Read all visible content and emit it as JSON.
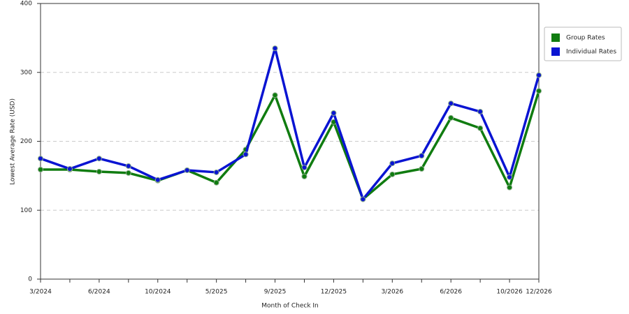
{
  "chart_data": {
    "type": "line",
    "x_label": "Month of Check In",
    "y_label": "Lowest Average Rate (USD)",
    "categories": [
      "3/2024",
      null,
      "6/2024",
      null,
      "10/2024",
      null,
      "5/2025",
      null,
      "9/2025",
      null,
      "12/2025",
      null,
      "3/2026",
      null,
      "6/2026",
      null,
      "10/2026",
      "12/2026"
    ],
    "series": [
      {
        "name": "Group Rates",
        "color": "#107c10",
        "values": [
          159,
          159,
          156,
          154,
          143,
          158,
          140,
          188,
          267,
          149,
          228,
          116,
          152,
          160,
          234,
          219,
          133,
          273
        ]
      },
      {
        "name": "Individual Rates",
        "color": "#0a14d2",
        "values": [
          175,
          160,
          175,
          164,
          144,
          158,
          155,
          181,
          335,
          162,
          241,
          116,
          168,
          179,
          255,
          243,
          148,
          296
        ]
      }
    ],
    "ylim": [
      0,
      400
    ],
    "yticks": [
      0,
      100,
      200,
      300,
      400
    ],
    "grid": true,
    "legend": "right"
  }
}
